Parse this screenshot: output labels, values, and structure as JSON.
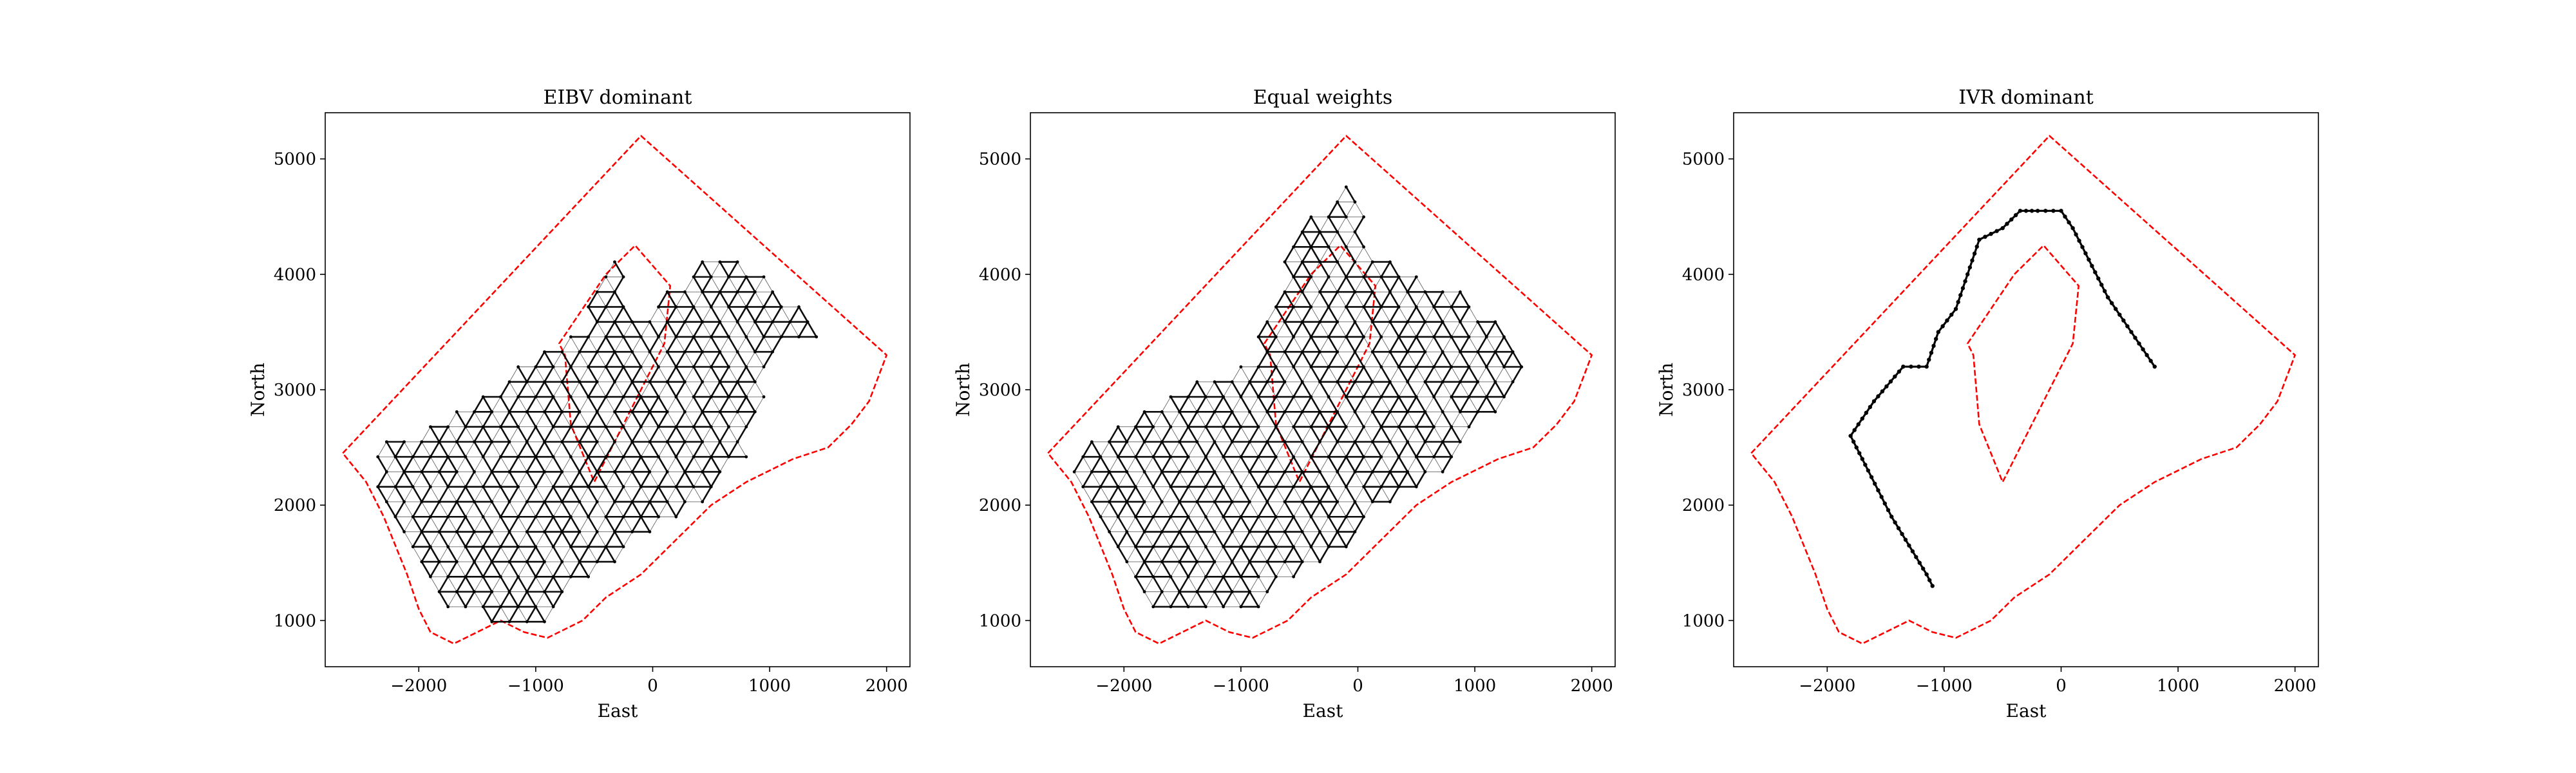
{
  "chart_data": [
    {
      "type": "line",
      "title": "EIBV dominant",
      "xlabel": "East",
      "ylabel": "North",
      "xlim": [
        -2800,
        2200
      ],
      "ylim": [
        600,
        5400
      ],
      "xticks": [
        -2000,
        -1000,
        0,
        1000,
        2000
      ],
      "xtick_labels": [
        "−2000",
        "−1000",
        "0",
        "1000",
        "2000"
      ],
      "yticks": [
        1000,
        2000,
        3000,
        4000,
        5000
      ],
      "ytick_labels": [
        "1000",
        "2000",
        "3000",
        "4000",
        "5000"
      ],
      "grid": false,
      "series": [
        {
          "role": "boundary",
          "color": "#ff0000",
          "x": [
            -2650,
            -100,
            2000,
            1850,
            1700,
            1500,
            1200,
            1000,
            800,
            500,
            200,
            -100,
            -400,
            -600,
            -900,
            -1100,
            -1300,
            -1500,
            -1700,
            -1900,
            -2000,
            -2100,
            -2300,
            -2450,
            -2650
          ],
          "y": [
            2450,
            5200,
            3300,
            2900,
            2700,
            2500,
            2400,
            2300,
            2200,
            2000,
            1700,
            1400,
            1200,
            1000,
            850,
            900,
            1000,
            900,
            800,
            900,
            1100,
            1400,
            1900,
            2200,
            2450
          ]
        },
        {
          "role": "obstacle",
          "color": "#ff0000",
          "x": [
            -800,
            -400,
            -150,
            150,
            100,
            -100,
            -300,
            -500,
            -700,
            -750,
            -800
          ],
          "y": [
            3400,
            4000,
            4250,
            3900,
            3400,
            3000,
            2600,
            2200,
            2700,
            3300,
            3400
          ]
        },
        {
          "role": "paths",
          "color": "#000000",
          "pattern": "lattice",
          "region_x": [
            -2500,
            -1700,
            -600,
            -300,
            -200,
            500,
            1000,
            1500,
            1100,
            800,
            400,
            -200,
            -600,
            -900,
            -1300,
            -1500,
            -1800,
            -2200,
            -2500
          ],
          "region_y": [
            2500,
            2800,
            3600,
            4400,
            3600,
            4200,
            4000,
            3500,
            3300,
            2400,
            2000,
            1600,
            1300,
            950,
            900,
            1000,
            1050,
            1700,
            2500
          ]
        }
      ]
    },
    {
      "type": "line",
      "title": "Equal weights",
      "xlabel": "East",
      "ylabel": "North",
      "xlim": [
        -2800,
        2200
      ],
      "ylim": [
        600,
        5400
      ],
      "xticks": [
        -2000,
        -1000,
        0,
        1000,
        2000
      ],
      "xtick_labels": [
        "−2000",
        "−1000",
        "0",
        "1000",
        "2000"
      ],
      "yticks": [
        1000,
        2000,
        3000,
        4000,
        5000
      ],
      "ytick_labels": [
        "1000",
        "2000",
        "3000",
        "4000",
        "5000"
      ],
      "grid": false,
      "series": [
        {
          "role": "boundary",
          "color": "#ff0000",
          "x": [
            -2650,
            -100,
            2000,
            1850,
            1700,
            1500,
            1200,
            1000,
            800,
            500,
            200,
            -100,
            -400,
            -600,
            -900,
            -1100,
            -1300,
            -1500,
            -1700,
            -1900,
            -2000,
            -2100,
            -2300,
            -2450,
            -2650
          ],
          "y": [
            2450,
            5200,
            3300,
            2900,
            2700,
            2500,
            2400,
            2300,
            2200,
            2000,
            1700,
            1400,
            1200,
            1000,
            850,
            900,
            1000,
            900,
            800,
            900,
            1100,
            1400,
            1900,
            2200,
            2450
          ]
        },
        {
          "role": "obstacle",
          "color": "#ff0000",
          "x": [
            -800,
            -400,
            -150,
            150,
            100,
            -100,
            -300,
            -500,
            -700,
            -750,
            -800
          ],
          "y": [
            3400,
            4000,
            4250,
            3900,
            3400,
            3000,
            2600,
            2200,
            2700,
            3300,
            3400
          ]
        },
        {
          "role": "paths",
          "color": "#000000",
          "pattern": "lattice",
          "region_x": [
            -2500,
            -1800,
            -900,
            -600,
            -100,
            200,
            600,
            1000,
            1500,
            1200,
            700,
            200,
            -200,
            -600,
            -1000,
            -1300,
            -1800,
            -2100,
            -2500
          ],
          "region_y": [
            2400,
            2900,
            3300,
            4300,
            4800,
            4200,
            4000,
            3800,
            3200,
            2800,
            2200,
            1900,
            1500,
            1300,
            1000,
            1000,
            1100,
            1700,
            2400
          ]
        }
      ]
    },
    {
      "type": "line",
      "title": "IVR dominant",
      "xlabel": "East",
      "ylabel": "North",
      "xlim": [
        -2800,
        2200
      ],
      "ylim": [
        600,
        5400
      ],
      "xticks": [
        -2000,
        -1000,
        0,
        1000,
        2000
      ],
      "xtick_labels": [
        "−2000",
        "−1000",
        "0",
        "1000",
        "2000"
      ],
      "yticks": [
        1000,
        2000,
        3000,
        4000,
        5000
      ],
      "ytick_labels": [
        "1000",
        "2000",
        "3000",
        "4000",
        "5000"
      ],
      "grid": false,
      "series": [
        {
          "role": "boundary",
          "color": "#ff0000",
          "x": [
            -2650,
            -100,
            2000,
            1850,
            1700,
            1500,
            1200,
            1000,
            800,
            500,
            200,
            -100,
            -400,
            -600,
            -900,
            -1100,
            -1300,
            -1500,
            -1700,
            -1900,
            -2000,
            -2100,
            -2300,
            -2450,
            -2650
          ],
          "y": [
            2450,
            5200,
            3300,
            2900,
            2700,
            2500,
            2400,
            2300,
            2200,
            2000,
            1700,
            1400,
            1200,
            1000,
            850,
            900,
            1000,
            900,
            800,
            900,
            1100,
            1400,
            1900,
            2200,
            2450
          ]
        },
        {
          "role": "obstacle",
          "color": "#ff0000",
          "x": [
            -800,
            -400,
            -150,
            150,
            100,
            -100,
            -300,
            -500,
            -700,
            -750,
            -800
          ],
          "y": [
            3400,
            4000,
            4250,
            3900,
            3400,
            3000,
            2600,
            2200,
            2700,
            3300,
            3400
          ]
        },
        {
          "role": "path",
          "color": "#000000",
          "x": [
            -1100,
            -1150,
            -1450,
            -1650,
            -1800,
            -1600,
            -1350,
            -1150,
            -1050,
            -900,
            -800,
            -700,
            -500,
            -350,
            -200,
            0,
            100,
            400,
            800
          ],
          "y": [
            1300,
            1400,
            1900,
            2300,
            2600,
            2900,
            3200,
            3200,
            3500,
            3700,
            4000,
            4300,
            4400,
            4550,
            4550,
            4550,
            4400,
            3800,
            3200
          ]
        }
      ]
    }
  ]
}
